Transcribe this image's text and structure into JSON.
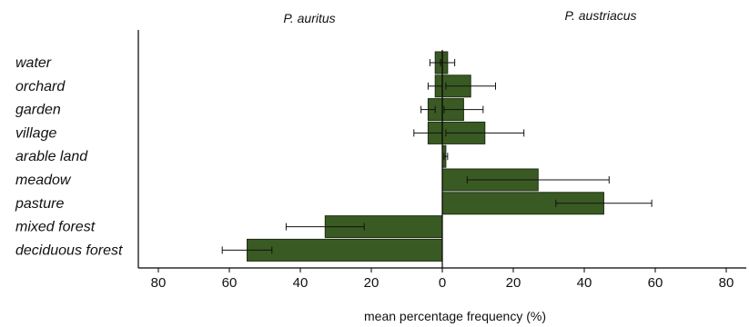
{
  "chart_data": {
    "type": "bar",
    "orientation": "horizontal-back-to-back",
    "left_title": "P. auritus",
    "right_title": "P. austriacus",
    "xlabel": "mean percentage frequency (%)",
    "ylabel": "",
    "xlim": [
      -80,
      80
    ],
    "x_ticks": [
      "80",
      "60",
      "40",
      "20",
      "0",
      "20",
      "40",
      "60",
      "80"
    ],
    "categories": [
      "water",
      "orchard",
      "garden",
      "village",
      "arable land",
      "meadow",
      "pasture",
      "mixed forest",
      "deciduous forest"
    ],
    "series": [
      {
        "name": "P. auritus",
        "values": [
          2,
          2,
          4,
          4,
          0,
          0,
          0,
          33,
          55
        ],
        "error": [
          1.5,
          2,
          2,
          4,
          0,
          0,
          0,
          11,
          7
        ]
      },
      {
        "name": "P. austriacus",
        "values": [
          1.5,
          8,
          6,
          12,
          1,
          27,
          45.5,
          0,
          0
        ],
        "error": [
          2,
          7,
          5.5,
          11,
          0.5,
          20,
          13.5,
          0,
          0
        ]
      }
    ],
    "colors": {
      "bar": "#3a5a23",
      "bar_stroke": "#1f2e12",
      "axis": "#000000"
    },
    "grid": false,
    "legend": "none"
  }
}
